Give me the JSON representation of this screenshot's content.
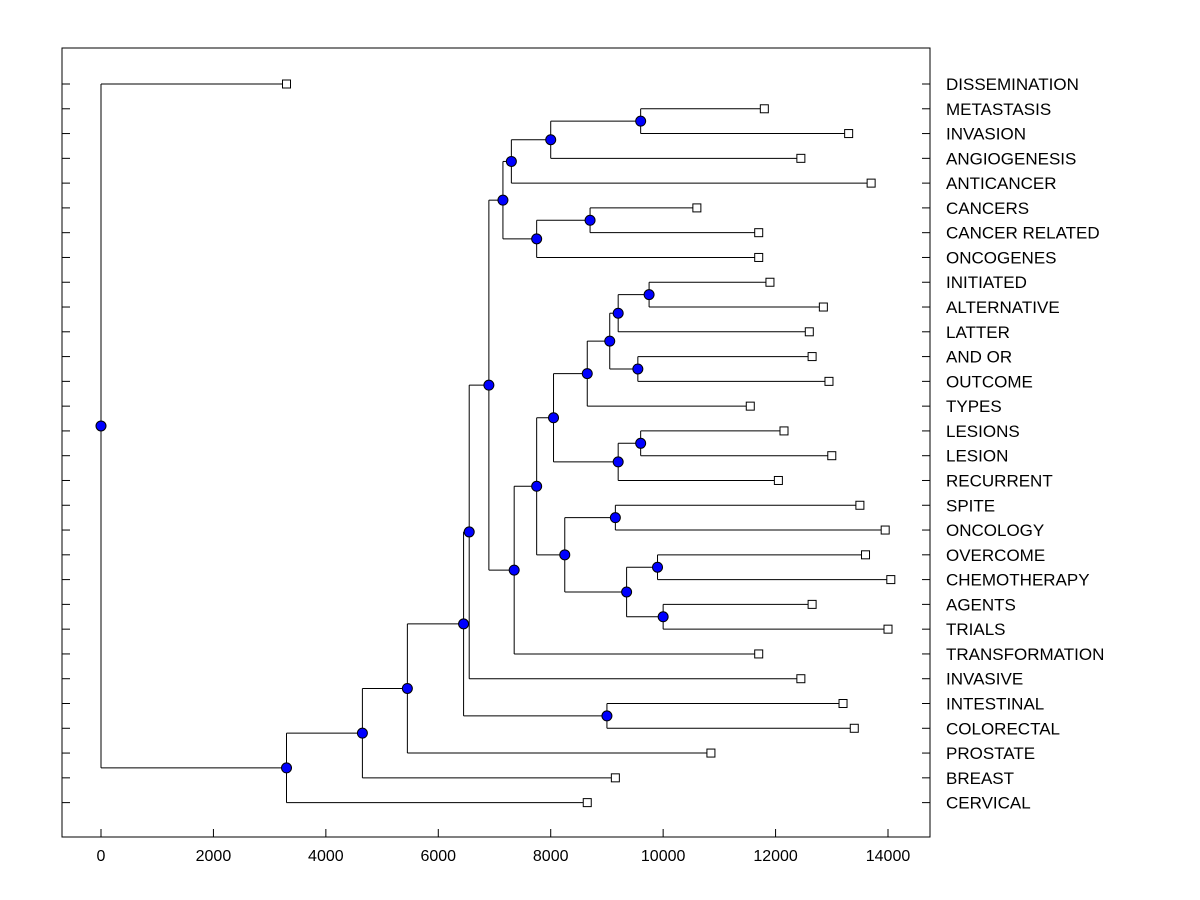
{
  "chart_data": {
    "type": "dendrogram",
    "title": "",
    "xlabel": "",
    "ylabel": "",
    "xlim": [
      -700,
      14700
    ],
    "x_ticks": [
      0,
      2000,
      4000,
      6000,
      8000,
      10000,
      12000,
      14000
    ],
    "leaf_labels": [
      "DISSEMINATION",
      "METASTASIS",
      "INVASION",
      "ANGIOGENESIS",
      "ANTICANCER",
      "CANCERS",
      "CANCER RELATED",
      "ONCOGENES",
      "INITIATED",
      "ALTERNATIVE",
      "LATTER",
      "AND OR",
      "OUTCOME",
      "TYPES",
      "LESIONS",
      "LESION",
      "RECURRENT",
      "SPITE",
      "ONCOLOGY",
      "OVERCOME",
      "CHEMOTHERAPY",
      "AGENTS",
      "TRIALS",
      "TRANSFORMATION",
      "INVASIVE",
      "INTESTINAL",
      "COLORECTAL",
      "PROSTATE",
      "BREAST",
      "CERVICAL"
    ],
    "leaf_values": [
      3300,
      11800,
      13300,
      12450,
      13700,
      10600,
      11700,
      11700,
      11900,
      12850,
      12600,
      12650,
      12950,
      11550,
      12150,
      13000,
      12050,
      13500,
      13950,
      13600,
      14050,
      12650,
      14000,
      11700,
      12450,
      13200,
      13400,
      10850,
      9150,
      8650
    ],
    "merges": [
      {
        "id": "a1",
        "value": 9600,
        "children": [
          "L1",
          "L2"
        ]
      },
      {
        "id": "a2",
        "value": 8000,
        "children": [
          "a1",
          "L3"
        ]
      },
      {
        "id": "a3",
        "value": 7300,
        "children": [
          "a2",
          "L4"
        ]
      },
      {
        "id": "b1",
        "value": 8700,
        "children": [
          "L5",
          "L6"
        ]
      },
      {
        "id": "b2",
        "value": 7750,
        "children": [
          "b1",
          "L7"
        ]
      },
      {
        "id": "ab",
        "value": 7150,
        "children": [
          "a3",
          "b2"
        ]
      },
      {
        "id": "c1",
        "value": 9750,
        "children": [
          "L8",
          "L9"
        ]
      },
      {
        "id": "c2",
        "value": 9200,
        "children": [
          "c1",
          "L10"
        ]
      },
      {
        "id": "c3",
        "value": 9550,
        "children": [
          "L11",
          "L12"
        ]
      },
      {
        "id": "c4",
        "value": 9050,
        "children": [
          "c2",
          "c3"
        ]
      },
      {
        "id": "c5",
        "value": 8650,
        "children": [
          "c4",
          "L13"
        ]
      },
      {
        "id": "d1",
        "value": 9600,
        "children": [
          "L14",
          "L15"
        ]
      },
      {
        "id": "d2",
        "value": 9200,
        "children": [
          "d1",
          "L16"
        ]
      },
      {
        "id": "cd",
        "value": 8050,
        "children": [
          "c5",
          "d2"
        ]
      },
      {
        "id": "e1",
        "value": 9150,
        "children": [
          "L17",
          "L18"
        ]
      },
      {
        "id": "e2",
        "value": 9900,
        "children": [
          "L19",
          "L20"
        ]
      },
      {
        "id": "e3",
        "value": 10000,
        "children": [
          "L21",
          "L22"
        ]
      },
      {
        "id": "e4",
        "value": 9350,
        "children": [
          "e2",
          "e3"
        ]
      },
      {
        "id": "e5",
        "value": 8250,
        "children": [
          "e1",
          "e4"
        ]
      },
      {
        "id": "cde",
        "value": 7750,
        "children": [
          "cd",
          "e5"
        ]
      },
      {
        "id": "f1",
        "value": 7350,
        "children": [
          "cde",
          "L23"
        ]
      },
      {
        "id": "g1",
        "value": 6900,
        "children": [
          "ab",
          "f1"
        ]
      },
      {
        "id": "g2",
        "value": 6550,
        "children": [
          "g1",
          "L24"
        ]
      },
      {
        "id": "h1",
        "value": 9000,
        "children": [
          "L25",
          "L26"
        ]
      },
      {
        "id": "g3",
        "value": 6450,
        "children": [
          "g2",
          "h1"
        ]
      },
      {
        "id": "g4",
        "value": 5450,
        "children": [
          "g3",
          "L27"
        ]
      },
      {
        "id": "g5",
        "value": 4650,
        "children": [
          "g4",
          "L28"
        ]
      },
      {
        "id": "g6",
        "value": 3300,
        "children": [
          "g5",
          "L29"
        ]
      },
      {
        "id": "root",
        "value": 0,
        "children": [
          "L0",
          "g6"
        ]
      }
    ],
    "colors": {
      "node": "#0000ff",
      "line": "#000000",
      "leaf": "#ffffff"
    }
  }
}
